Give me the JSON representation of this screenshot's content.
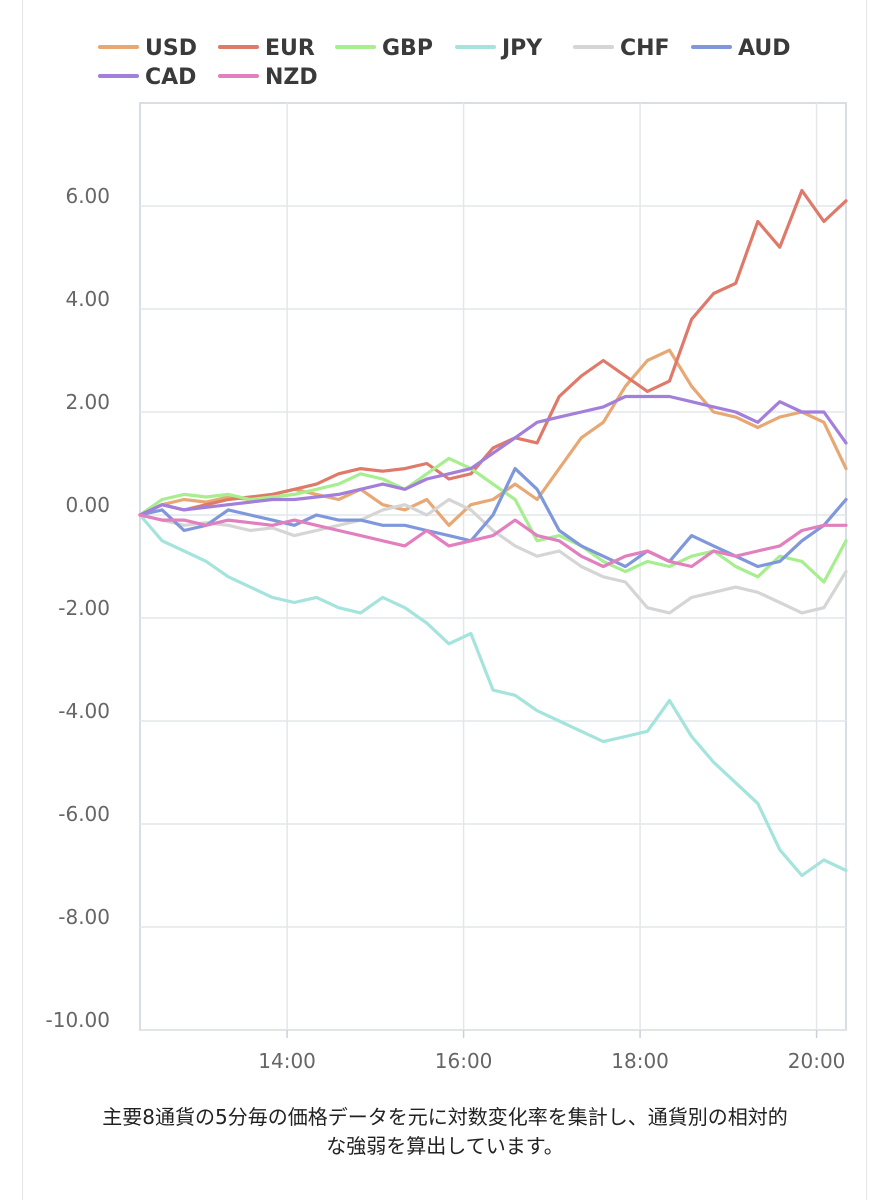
{
  "chart_data": {
    "type": "line",
    "ylim": [
      -10,
      8
    ],
    "y_ticks": [
      "6.00",
      "4.00",
      "2.00",
      "0.00",
      "-2.00",
      "-4.00",
      "-6.00",
      "-8.00",
      "-10.00"
    ],
    "x_ticks": [
      "14:00",
      "16:00",
      "18:00",
      "20:00"
    ],
    "x": [
      "12:20",
      "12:35",
      "12:50",
      "13:05",
      "13:20",
      "13:35",
      "13:50",
      "14:05",
      "14:20",
      "14:35",
      "14:50",
      "15:05",
      "15:20",
      "15:35",
      "15:50",
      "16:05",
      "16:20",
      "16:35",
      "16:50",
      "17:05",
      "17:20",
      "17:35",
      "17:50",
      "18:05",
      "18:20",
      "18:35",
      "18:50",
      "19:05",
      "19:20",
      "19:35",
      "19:50",
      "20:05",
      "20:20"
    ],
    "grid": true,
    "legend_position": "top",
    "series": [
      {
        "name": "USD",
        "color": "#e8a874",
        "values": [
          0,
          0.2,
          0.3,
          0.25,
          0.35,
          0.3,
          0.4,
          0.5,
          0.4,
          0.3,
          0.5,
          0.2,
          0.1,
          0.3,
          -0.2,
          0.2,
          0.3,
          0.6,
          0.3,
          0.9,
          1.5,
          1.8,
          2.5,
          3.0,
          3.2,
          2.5,
          2.0,
          1.9,
          1.7,
          1.9,
          2.0,
          1.8,
          0.9
        ]
      },
      {
        "name": "EUR",
        "color": "#df7a6b",
        "values": [
          0,
          0.2,
          0.1,
          0.2,
          0.3,
          0.35,
          0.4,
          0.5,
          0.6,
          0.8,
          0.9,
          0.85,
          0.9,
          1.0,
          0.7,
          0.8,
          1.3,
          1.5,
          1.4,
          2.3,
          2.7,
          3.0,
          2.7,
          2.4,
          2.6,
          3.8,
          4.3,
          4.5,
          5.7,
          5.2,
          6.3,
          5.7,
          6.1
        ]
      },
      {
        "name": "GBP",
        "color": "#a6ee8e",
        "values": [
          0,
          0.3,
          0.4,
          0.35,
          0.4,
          0.3,
          0.35,
          0.4,
          0.5,
          0.6,
          0.8,
          0.7,
          0.5,
          0.8,
          1.1,
          0.9,
          0.6,
          0.3,
          -0.5,
          -0.4,
          -0.6,
          -0.9,
          -1.1,
          -0.9,
          -1.0,
          -0.8,
          -0.7,
          -1.0,
          -1.2,
          -0.8,
          -0.9,
          -1.3,
          -0.5
        ]
      },
      {
        "name": "JPY",
        "color": "#a4e4dd",
        "values": [
          0,
          -0.5,
          -0.7,
          -0.9,
          -1.2,
          -1.4,
          -1.6,
          -1.7,
          -1.6,
          -1.8,
          -1.9,
          -1.6,
          -1.8,
          -2.1,
          -2.5,
          -2.3,
          -3.4,
          -3.5,
          -3.8,
          -4.0,
          -4.2,
          -4.4,
          -4.3,
          -4.2,
          -3.6,
          -4.3,
          -4.8,
          -5.2,
          -5.6,
          -6.5,
          -7.0,
          -6.7,
          -6.9
        ]
      },
      {
        "name": "CHF",
        "color": "#d5d5d5",
        "values": [
          0,
          -0.1,
          -0.2,
          -0.15,
          -0.2,
          -0.3,
          -0.25,
          -0.4,
          -0.3,
          -0.2,
          -0.1,
          0.1,
          0.2,
          0.0,
          0.3,
          0.1,
          -0.3,
          -0.6,
          -0.8,
          -0.7,
          -1.0,
          -1.2,
          -1.3,
          -1.8,
          -1.9,
          -1.6,
          -1.5,
          -1.4,
          -1.5,
          -1.7,
          -1.9,
          -1.8,
          -1.1
        ]
      },
      {
        "name": "AUD",
        "color": "#7f98dc",
        "values": [
          0,
          0.1,
          -0.3,
          -0.2,
          0.1,
          0.0,
          -0.1,
          -0.2,
          0.0,
          -0.1,
          -0.1,
          -0.2,
          -0.2,
          -0.3,
          -0.4,
          -0.5,
          0.0,
          0.9,
          0.5,
          -0.3,
          -0.6,
          -0.8,
          -1.0,
          -0.7,
          -0.9,
          -0.4,
          -0.6,
          -0.8,
          -1.0,
          -0.9,
          -0.5,
          -0.2,
          0.3
        ]
      },
      {
        "name": "CAD",
        "color": "#a37fdc",
        "values": [
          0,
          0.2,
          0.1,
          0.15,
          0.2,
          0.25,
          0.3,
          0.3,
          0.35,
          0.4,
          0.5,
          0.6,
          0.5,
          0.7,
          0.8,
          0.9,
          1.2,
          1.5,
          1.8,
          1.9,
          2.0,
          2.1,
          2.3,
          2.3,
          2.3,
          2.2,
          2.1,
          2.0,
          1.8,
          2.2,
          2.0,
          2.0,
          1.4
        ]
      },
      {
        "name": "NZD",
        "color": "#e27fbf",
        "values": [
          0,
          -0.1,
          -0.1,
          -0.2,
          -0.1,
          -0.15,
          -0.2,
          -0.1,
          -0.2,
          -0.3,
          -0.4,
          -0.5,
          -0.6,
          -0.3,
          -0.6,
          -0.5,
          -0.4,
          -0.1,
          -0.4,
          -0.5,
          -0.8,
          -1.0,
          -0.8,
          -0.7,
          -0.9,
          -1.0,
          -0.7,
          -0.8,
          -0.7,
          -0.6,
          -0.3,
          -0.2,
          -0.2
        ]
      }
    ]
  },
  "caption": {
    "line1": "主要8通貨の5分毎の価格データを元に対数変化率を集計し、通貨別の相対的",
    "line2": "な強弱を算出しています。"
  }
}
